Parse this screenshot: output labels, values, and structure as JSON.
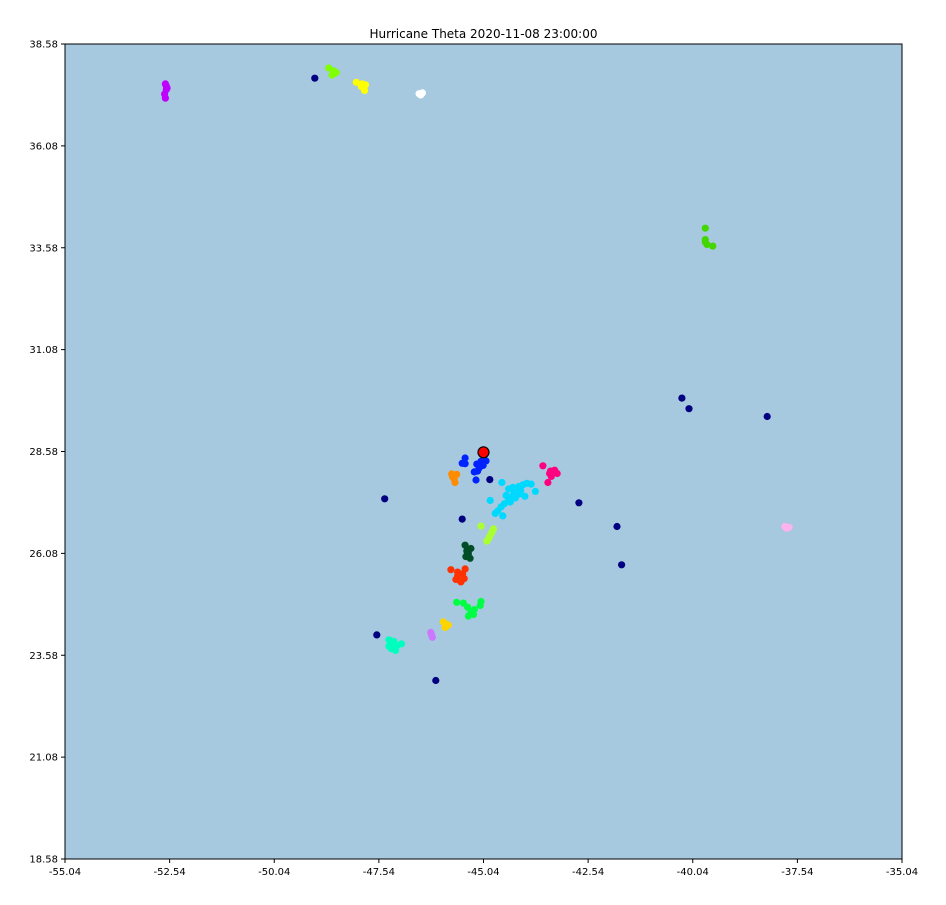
{
  "chart_data": {
    "type": "scatter",
    "title": "Hurricane Theta 2020-11-08 23:00:00",
    "xlabel": "",
    "ylabel": "",
    "xlim": [
      -55.04,
      -35.04
    ],
    "ylim": [
      18.58,
      38.58
    ],
    "xticks": [
      -55.04,
      -52.54,
      -50.04,
      -47.54,
      -45.04,
      -42.54,
      -40.04,
      -37.54,
      -35.04
    ],
    "xtick_labels": [
      "-55.04",
      "-52.54",
      "-50.04",
      "-47.54",
      "-45.04",
      "-42.54",
      "-40.04",
      "-37.54",
      "-35.04"
    ],
    "yticks": [
      18.58,
      21.08,
      23.58,
      26.08,
      28.58,
      31.08,
      33.58,
      36.08,
      38.58
    ],
    "ytick_labels": [
      "18.58",
      "21.08",
      "23.58",
      "26.08",
      "28.58",
      "31.08",
      "33.58",
      "36.08",
      "38.58"
    ],
    "grid": false,
    "background_color": "#a6c9df",
    "center": {
      "x": -45.04,
      "y": 28.56,
      "color": "#ff0000"
    },
    "series": [
      {
        "color": "#000080",
        "points": [
          [
            -49.07,
            37.74
          ],
          [
            -47.4,
            27.42
          ],
          [
            -45.55,
            26.92
          ],
          [
            -44.89,
            27.89
          ],
          [
            -42.76,
            27.32
          ],
          [
            -41.85,
            26.74
          ],
          [
            -41.74,
            25.8
          ],
          [
            -40.3,
            29.89
          ],
          [
            -40.13,
            29.63
          ],
          [
            -38.26,
            29.44
          ],
          [
            -47.59,
            24.08
          ],
          [
            -46.18,
            22.96
          ]
        ]
      },
      {
        "color": "#bf00ff",
        "points": [
          [
            -52.64,
            37.6
          ],
          [
            -52.62,
            37.46
          ],
          [
            -52.6,
            37.5
          ],
          [
            -52.66,
            37.35
          ],
          [
            -52.62,
            37.55
          ],
          [
            -52.64,
            37.25
          ]
        ]
      },
      {
        "color": "#80ff00",
        "points": [
          [
            -48.74,
            37.99
          ],
          [
            -48.6,
            37.86
          ],
          [
            -48.62,
            37.92
          ],
          [
            -48.56,
            37.88
          ],
          [
            -48.66,
            37.82
          ]
        ]
      },
      {
        "color": "#ffff00",
        "points": [
          [
            -48.08,
            37.64
          ],
          [
            -47.94,
            37.6
          ],
          [
            -47.9,
            37.5
          ],
          [
            -47.88,
            37.44
          ],
          [
            -47.96,
            37.54
          ],
          [
            -47.86,
            37.58
          ]
        ]
      },
      {
        "color": "#ffffff",
        "points": [
          [
            -46.58,
            37.36
          ],
          [
            -46.5,
            37.38
          ],
          [
            -46.54,
            37.33
          ]
        ]
      },
      {
        "color": "#44d600",
        "points": [
          [
            -39.74,
            34.06
          ],
          [
            -39.74,
            33.78
          ],
          [
            -39.7,
            33.66
          ],
          [
            -39.56,
            33.62
          ],
          [
            -39.74,
            33.72
          ]
        ]
      },
      {
        "color": "#0022ff",
        "points": [
          [
            -45.48,
            28.28
          ],
          [
            -45.55,
            28.29
          ],
          [
            -45.48,
            28.42
          ],
          [
            -45.2,
            28.27
          ],
          [
            -45.12,
            28.3
          ],
          [
            -44.98,
            28.35
          ],
          [
            -45.18,
            28.1
          ],
          [
            -45.26,
            28.08
          ],
          [
            -45.15,
            28.22
          ],
          [
            -45.05,
            28.24
          ],
          [
            -45.1,
            28.34
          ],
          [
            -45.22,
            27.88
          ],
          [
            -45.14,
            28.18
          ]
        ]
      },
      {
        "color": "#ff8c00",
        "points": [
          [
            -45.8,
            28.03
          ],
          [
            -45.68,
            28.02
          ],
          [
            -45.74,
            27.9
          ],
          [
            -45.72,
            27.82
          ],
          [
            -45.78,
            27.96
          ]
        ]
      },
      {
        "color": "#ff0080",
        "points": [
          [
            -43.62,
            28.23
          ],
          [
            -43.44,
            28.1
          ],
          [
            -43.28,
            28.04
          ],
          [
            -43.42,
            27.97
          ],
          [
            -43.34,
            28.12
          ],
          [
            -43.5,
            27.82
          ],
          [
            -43.46,
            28.04
          ]
        ]
      },
      {
        "color": "#00d9ff",
        "points": [
          [
            -44.6,
            27.82
          ],
          [
            -44.44,
            27.66
          ],
          [
            -44.34,
            27.7
          ],
          [
            -44.2,
            27.72
          ],
          [
            -44.1,
            27.76
          ],
          [
            -44.0,
            27.8
          ],
          [
            -43.9,
            27.78
          ],
          [
            -44.24,
            27.52
          ],
          [
            -44.3,
            27.58
          ],
          [
            -44.44,
            27.42
          ],
          [
            -44.54,
            27.3
          ],
          [
            -44.62,
            27.22
          ],
          [
            -44.7,
            27.12
          ],
          [
            -44.76,
            27.06
          ],
          [
            -44.88,
            27.38
          ],
          [
            -43.8,
            27.6
          ],
          [
            -44.05,
            27.48
          ],
          [
            -44.15,
            27.62
          ],
          [
            -44.5,
            27.5
          ],
          [
            -44.58,
            27.0
          ],
          [
            -44.4,
            27.34
          ],
          [
            -44.28,
            27.44
          ],
          [
            -44.18,
            27.54
          ],
          [
            -44.34,
            27.5
          ]
        ]
      },
      {
        "color": "#aaff33",
        "points": [
          [
            -45.1,
            26.75
          ],
          [
            -44.8,
            26.68
          ],
          [
            -44.86,
            26.56
          ],
          [
            -44.94,
            26.4
          ],
          [
            -44.9,
            26.48
          ],
          [
            -44.84,
            26.6
          ],
          [
            -44.96,
            26.38
          ]
        ]
      },
      {
        "color": "#004d26",
        "points": [
          [
            -45.48,
            26.28
          ],
          [
            -45.44,
            26.14
          ],
          [
            -45.4,
            26.08
          ],
          [
            -45.36,
            25.96
          ],
          [
            -45.44,
            26.02
          ],
          [
            -45.34,
            26.2
          ],
          [
            -45.46,
            26.0
          ]
        ]
      },
      {
        "color": "#ff3300",
        "points": [
          [
            -45.82,
            25.68
          ],
          [
            -45.66,
            25.62
          ],
          [
            -45.54,
            25.58
          ],
          [
            -45.5,
            25.46
          ],
          [
            -45.58,
            25.38
          ],
          [
            -45.66,
            25.52
          ],
          [
            -45.48,
            25.7
          ],
          [
            -45.7,
            25.44
          ]
        ]
      },
      {
        "color": "#00ff44",
        "points": [
          [
            -45.68,
            24.88
          ],
          [
            -45.52,
            24.86
          ],
          [
            -45.42,
            24.76
          ],
          [
            -45.26,
            24.7
          ],
          [
            -45.34,
            24.64
          ],
          [
            -45.12,
            24.8
          ],
          [
            -45.1,
            24.9
          ],
          [
            -45.4,
            24.54
          ],
          [
            -45.28,
            24.58
          ]
        ]
      },
      {
        "color": "#ffd500",
        "points": [
          [
            -46.0,
            24.4
          ],
          [
            -45.94,
            24.34
          ],
          [
            -45.88,
            24.32
          ],
          [
            -45.96,
            24.26
          ]
        ]
      },
      {
        "color": "#cc77ff",
        "points": [
          [
            -46.3,
            24.14
          ],
          [
            -46.28,
            24.08
          ],
          [
            -46.26,
            24.02
          ]
        ]
      },
      {
        "color": "#00ffbf",
        "points": [
          [
            -47.3,
            23.96
          ],
          [
            -47.18,
            23.92
          ],
          [
            -47.1,
            23.82
          ],
          [
            -47.0,
            23.86
          ],
          [
            -47.24,
            23.74
          ],
          [
            -47.14,
            23.7
          ],
          [
            -47.3,
            23.8
          ],
          [
            -47.2,
            23.88
          ]
        ]
      },
      {
        "color": "#ffb3ee",
        "points": [
          [
            -37.84,
            26.74
          ],
          [
            -37.74,
            26.72
          ],
          [
            -37.8,
            26.7
          ]
        ]
      }
    ]
  }
}
